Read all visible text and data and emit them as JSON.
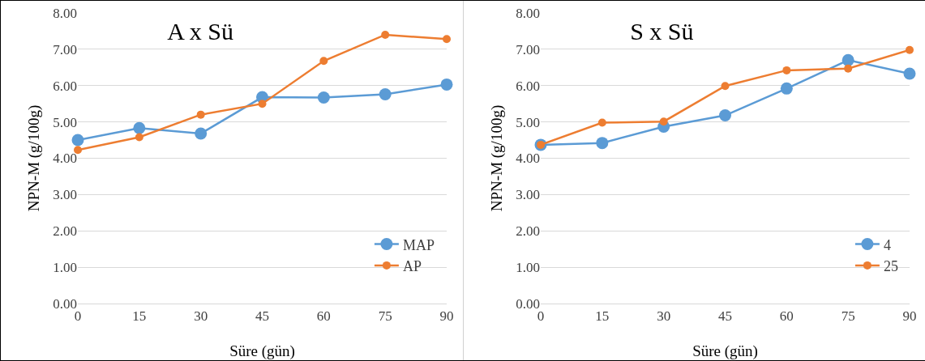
{
  "chart_data": [
    {
      "type": "line",
      "title": "A x Sü",
      "xlabel": "Süre (gün)",
      "ylabel": "NPN-M (g/100g)",
      "x": [
        0,
        15,
        30,
        45,
        60,
        75,
        90
      ],
      "series": [
        {
          "name": "MAP",
          "color": "#5b9bd5",
          "values": [
            4.5,
            4.83,
            4.68,
            5.68,
            5.67,
            5.76,
            6.03
          ]
        },
        {
          "name": "AP",
          "color": "#ed7d31",
          "values": [
            4.23,
            4.58,
            5.2,
            5.5,
            6.68,
            7.4,
            7.28
          ]
        }
      ],
      "xlim": [
        0,
        90
      ],
      "xticks": [
        0,
        15,
        30,
        45,
        60,
        75,
        90
      ],
      "ylim": [
        0,
        8
      ],
      "yticks": [
        {
          "value": 0,
          "label": "0.00"
        },
        {
          "value": 1,
          "label": "1.00"
        },
        {
          "value": 2,
          "label": "2.00"
        },
        {
          "value": 3,
          "label": "3.00"
        },
        {
          "value": 4,
          "label": "4.00"
        },
        {
          "value": 5,
          "label": "5.00"
        },
        {
          "value": 6,
          "label": "6.00"
        },
        {
          "value": 7,
          "label": "7.00"
        },
        {
          "value": 8,
          "label": "8.00"
        }
      ],
      "grid": "y",
      "legend": "bottom right",
      "marker": "circle",
      "line_style": "solid"
    },
    {
      "type": "line",
      "title": "S x Sü",
      "xlabel": "Süre (gün)",
      "ylabel": "NPN-M (g/100g)",
      "x": [
        0,
        15,
        30,
        45,
        60,
        75,
        90
      ],
      "series": [
        {
          "name": "4",
          "color": "#5b9bd5",
          "values": [
            4.37,
            4.42,
            4.87,
            5.18,
            5.92,
            6.7,
            6.33
          ]
        },
        {
          "name": "25",
          "color": "#ed7d31",
          "values": [
            4.37,
            4.98,
            5.01,
            5.99,
            6.42,
            6.47,
            6.98
          ]
        }
      ],
      "xlim": [
        0,
        90
      ],
      "xticks": [
        0,
        15,
        30,
        45,
        60,
        75,
        90
      ],
      "ylim": [
        0,
        8
      ],
      "yticks": [
        {
          "value": 0,
          "label": "0.00"
        },
        {
          "value": 1,
          "label": "1.00"
        },
        {
          "value": 2,
          "label": "2.00"
        },
        {
          "value": 3,
          "label": "3.00"
        },
        {
          "value": 4,
          "label": "4.00"
        },
        {
          "value": 5,
          "label": "5.00"
        },
        {
          "value": 6,
          "label": "6.00"
        },
        {
          "value": 7,
          "label": "7.00"
        },
        {
          "value": 8,
          "label": "8.00"
        }
      ],
      "grid": "y",
      "legend": "bottom right",
      "marker": "circle",
      "line_style": "solid"
    }
  ]
}
